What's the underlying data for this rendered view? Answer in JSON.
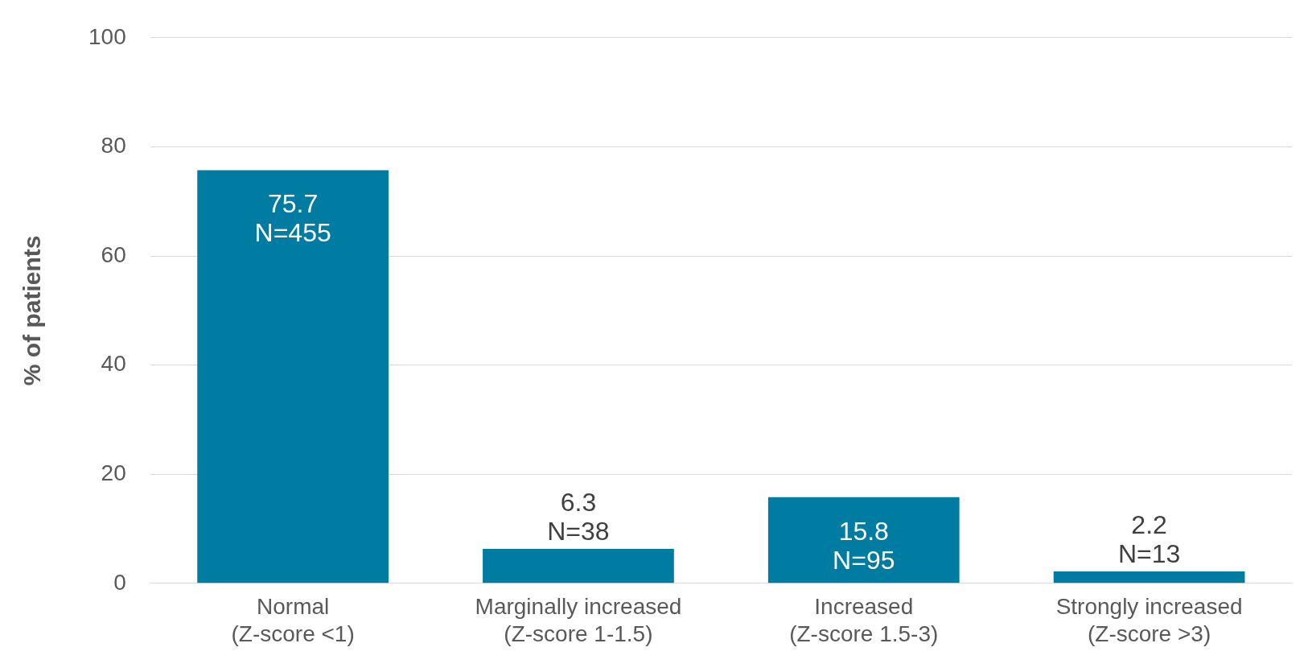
{
  "chart_data": {
    "type": "bar",
    "ylabel": "% of patients",
    "categories": [
      "Normal\n(Z-score <1)",
      "Marginally increased\n(Z-score 1-1.5)",
      "Increased\n(Z-score 1.5-3)",
      "Strongly increased\n(Z-score >3)"
    ],
    "values": [
      75.7,
      6.3,
      15.8,
      2.2
    ],
    "color": "#007ba1",
    "value_labels": [
      "75.7\nN=455",
      "6.3\nN=38",
      "15.8\nN=95",
      "2.2\nN=13"
    ],
    "ylim": [
      0,
      100
    ],
    "yticks": [
      0,
      20,
      40,
      60,
      80,
      100
    ],
    "grid": "y",
    "legend": false
  }
}
